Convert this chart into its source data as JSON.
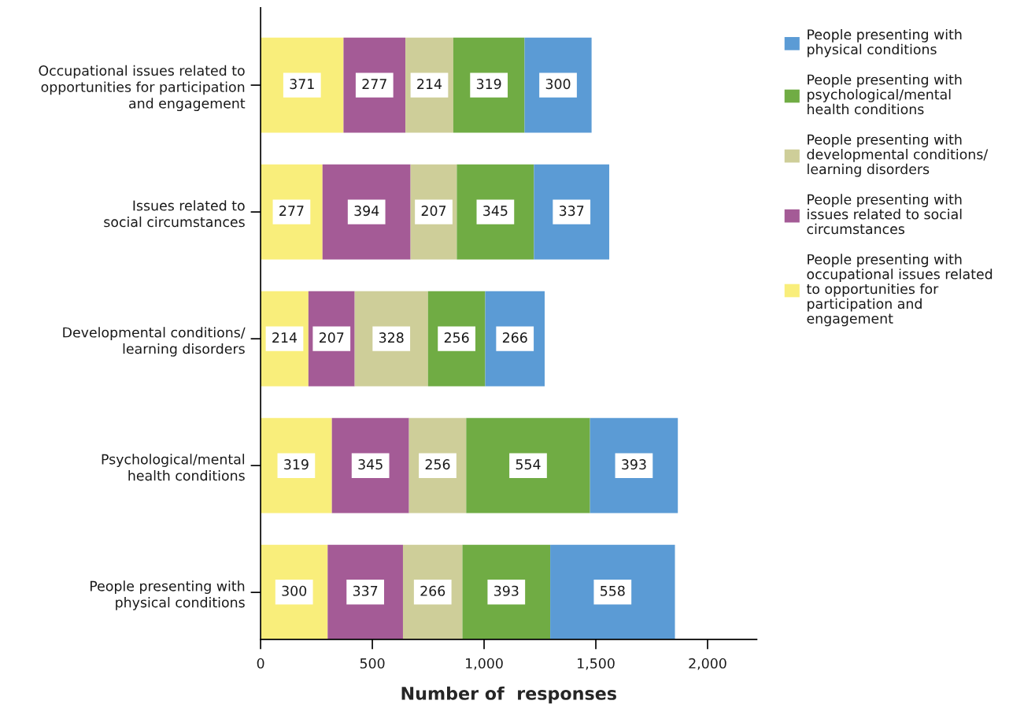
{
  "chart_data": {
    "type": "bar",
    "orientation": "horizontal",
    "stacked": true,
    "categories": [
      "Occupational issues related to\nopportunities for participation\nand engagement",
      "Issues related to\nsocial circumstances",
      "Developmental conditions/\nlearning disorders",
      "Psychological/mental\nhealth conditions",
      "People presenting with\nphysical conditions"
    ],
    "series": [
      {
        "name": "People presenting with\noccupational issues related\nto opportunities for\nparticipation and\nengagement",
        "color": "#f9ee7b",
        "values": [
          371,
          277,
          214,
          319,
          300
        ]
      },
      {
        "name": "People presenting with\nissues related to social\ncircumstances",
        "color": "#a45b96",
        "values": [
          277,
          394,
          207,
          345,
          337
        ]
      },
      {
        "name": "People presenting with\ndevelopmental conditions/\nlearning disorders",
        "color": "#cece99",
        "values": [
          214,
          207,
          328,
          256,
          266
        ]
      },
      {
        "name": "People presenting with\npsychological/mental\nhealth conditions",
        "color": "#70ac44",
        "values": [
          319,
          345,
          256,
          554,
          393
        ]
      },
      {
        "name": "People presenting with\nphysical conditions",
        "color": "#5b9bd5",
        "values": [
          300,
          337,
          266,
          393,
          558
        ]
      }
    ],
    "xlabel": "Number of  responses",
    "xlim": [
      0,
      2220
    ],
    "xticks": [
      0,
      500,
      {
        "value": 1000,
        "label": "1,000"
      },
      {
        "value": 1500,
        "label": "1,500"
      },
      {
        "value": 2000,
        "label": "2,000"
      }
    ],
    "data_labels": true,
    "legend": "right"
  }
}
